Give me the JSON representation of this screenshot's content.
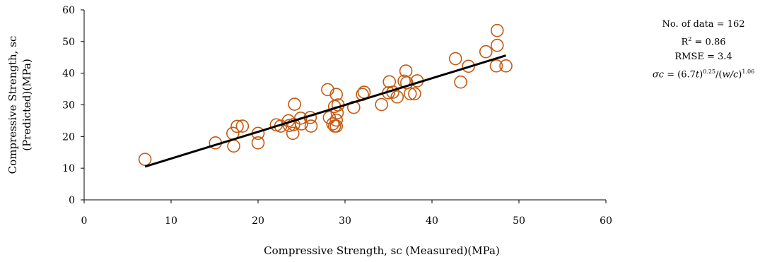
{
  "chart_data": {
    "type": "scatter",
    "xlabel": "Compressive Strength, sc (Measured)(MPa)",
    "ylabel_line1": "Compressive Strength, sc",
    "ylabel_line2": "(Predicted)(MPa)",
    "xlim": [
      0,
      60
    ],
    "ylim": [
      0,
      60
    ],
    "xticks": [
      0,
      10,
      20,
      30,
      40,
      50,
      60
    ],
    "yticks": [
      0,
      10,
      20,
      30,
      40,
      50,
      60
    ],
    "grid": false,
    "marker_color": "#c55a11",
    "line_color": "#000000",
    "points": [
      [
        7,
        12.8
      ],
      [
        15.1,
        18
      ],
      [
        17.1,
        21
      ],
      [
        17.2,
        17
      ],
      [
        17.6,
        23.2
      ],
      [
        18.2,
        23.3
      ],
      [
        20,
        21
      ],
      [
        20,
        18
      ],
      [
        22.1,
        23.7
      ],
      [
        22.6,
        23.3
      ],
      [
        23.5,
        25
      ],
      [
        23.6,
        23.5
      ],
      [
        24,
        21
      ],
      [
        24.1,
        23.8
      ],
      [
        24.2,
        30.2
      ],
      [
        24.9,
        25.8
      ],
      [
        25,
        24
      ],
      [
        26,
        26
      ],
      [
        26.1,
        23.3
      ],
      [
        28,
        34.8
      ],
      [
        28.2,
        26
      ],
      [
        28.6,
        24
      ],
      [
        28.8,
        29.5
      ],
      [
        28.8,
        23.3
      ],
      [
        29,
        33.3
      ],
      [
        29,
        25.2
      ],
      [
        29,
        23.3
      ],
      [
        29.1,
        27.5
      ],
      [
        29.2,
        30
      ],
      [
        31,
        29.2
      ],
      [
        32,
        33.3
      ],
      [
        32.2,
        34
      ],
      [
        34.2,
        30.1
      ],
      [
        35,
        33.8
      ],
      [
        35.1,
        37.3
      ],
      [
        35.5,
        34
      ],
      [
        36,
        32.5
      ],
      [
        36.8,
        37.5
      ],
      [
        37,
        40.7
      ],
      [
        37.1,
        37
      ],
      [
        37.5,
        33.5
      ],
      [
        38,
        33.5
      ],
      [
        38.3,
        37.6
      ],
      [
        42.7,
        44.6
      ],
      [
        43.3,
        37.2
      ],
      [
        44.2,
        42.2
      ],
      [
        46.2,
        46.8
      ],
      [
        47.4,
        42.3
      ],
      [
        47.5,
        53.5
      ],
      [
        47.5,
        48.8
      ],
      [
        48.5,
        42.3
      ]
    ],
    "fit_line": [
      [
        7,
        10.5
      ],
      [
        48.5,
        45.6
      ]
    ]
  },
  "stats": {
    "n_data": "No. of data = 162",
    "r2_prefix": "R",
    "r2_sup": "2",
    "r2_suffix": " = 0.86",
    "rmse": "RMSE = 3.4",
    "eq_sigma": "σc",
    "eq_mid": " = (6.7",
    "eq_t": "t",
    "eq_close": ")",
    "eq_exp1": "0.25",
    "eq_slash": "/(",
    "eq_wc": "w/c",
    "eq_exp2": "1.06"
  }
}
